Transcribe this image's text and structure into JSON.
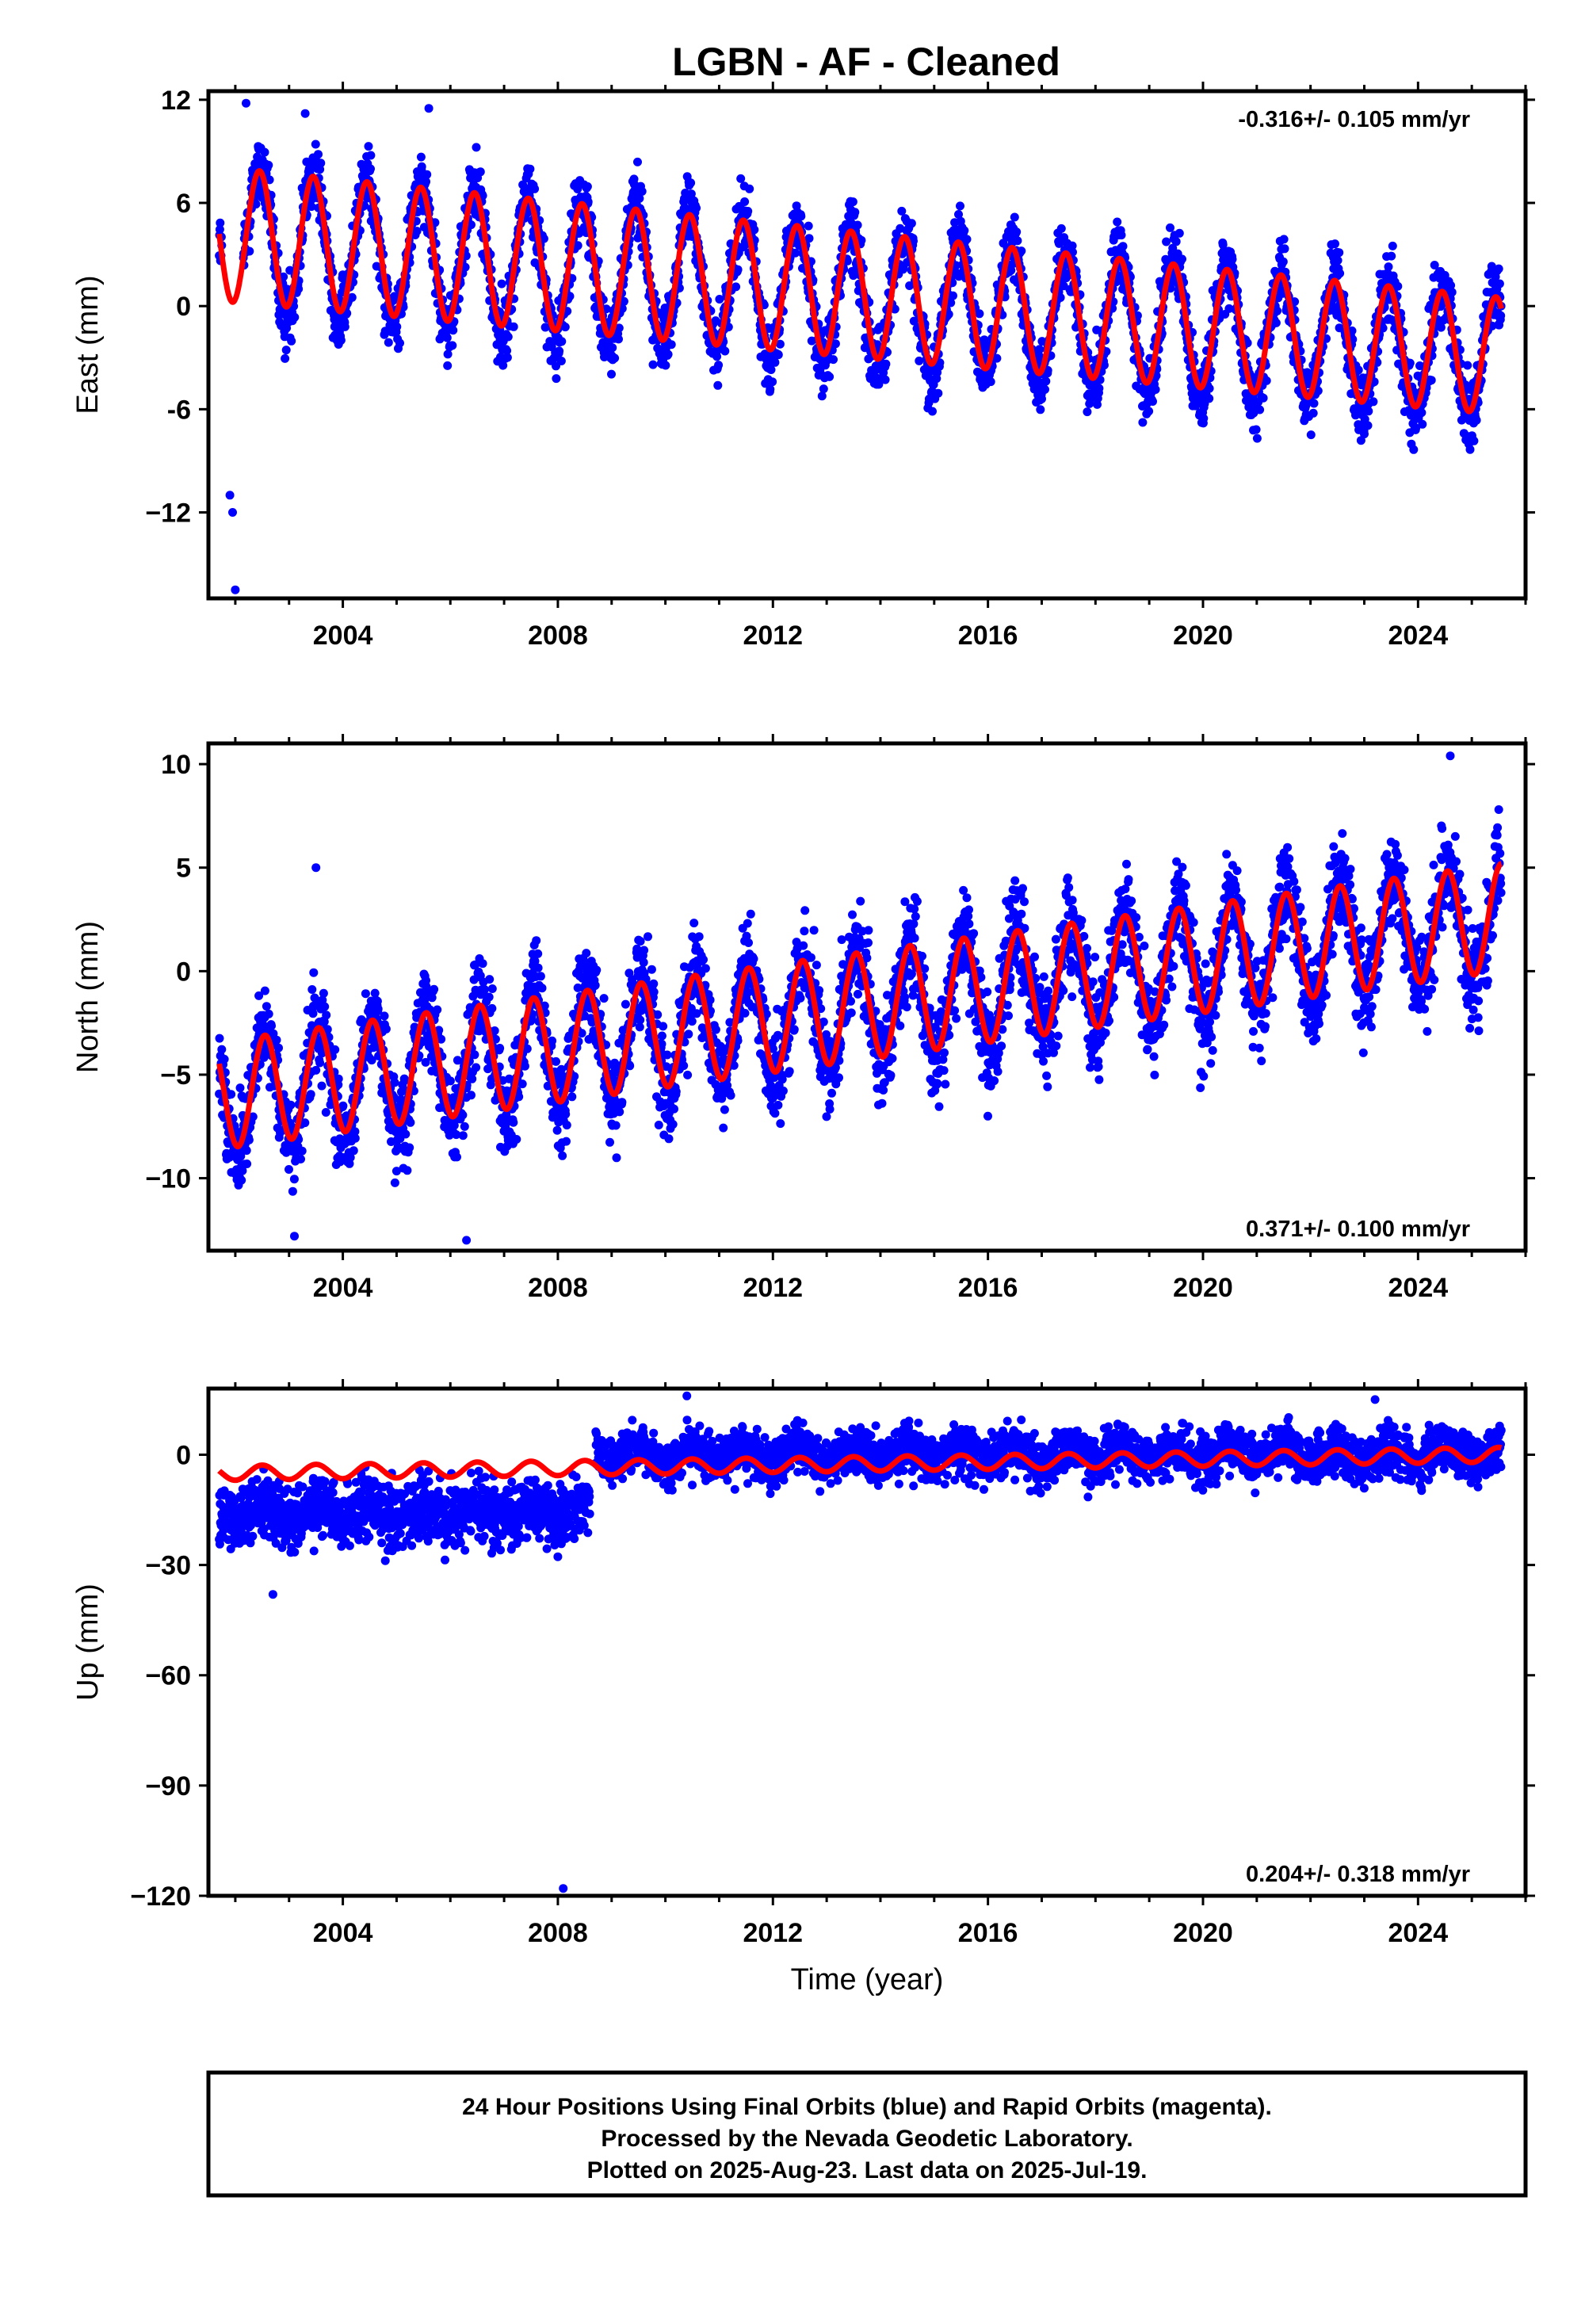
{
  "title": "LGBN  - AF - Cleaned",
  "colors": {
    "final_orbits": "#0000ff",
    "fit_line": "#ff0000",
    "frame": "#000000",
    "background": "#ffffff"
  },
  "chart_data": [
    {
      "type": "scatter",
      "component": "east",
      "ylabel": "East (mm)",
      "xlabel": "",
      "xlim": [
        2001.5,
        2026.0
      ],
      "ylim": [
        -17,
        12.5
      ],
      "yticks": [
        -12,
        -6,
        0,
        6,
        12
      ],
      "ytick_labels": [
        "−12",
        "-6",
        "0",
        "6",
        "12"
      ],
      "xticks": [
        2004,
        2008,
        2012,
        2016,
        2020,
        2024
      ],
      "xtick_labels": [
        "2004",
        "2008",
        "2012",
        "2016",
        "2020",
        "2024"
      ],
      "rate_text": "-0.316+/- 0.105 mm/yr",
      "rate_position": "top-right",
      "series": [
        {
          "name": "Final Orbits",
          "kind": "points",
          "data_start": 2001.7,
          "data_end": 2025.55,
          "gap_after": 2001.75,
          "gap_until": 2002.15,
          "annual_amplitude_start": 4.2,
          "annual_amplitude_end": 3.6,
          "peak_phase_year_fraction": 0.45,
          "offset_start": 4.0,
          "offset_end": -3.0,
          "scatter_mm": 1.4,
          "outliers": [
            [
              2001.9,
              -11
            ],
            [
              2001.95,
              -12
            ],
            [
              2002.0,
              -16.5
            ],
            [
              2005.6,
              11.5
            ],
            [
              2002.2,
              11.8
            ],
            [
              2003.3,
              11.2
            ]
          ]
        },
        {
          "name": "Model fit",
          "kind": "line",
          "x_start": 2001.7,
          "x_end": 2025.55,
          "annual_amplitude_start": 3.9,
          "annual_amplitude_end": 3.4,
          "peak_phase_year_fraction": 0.45,
          "offset_start": 4.2,
          "offset_end": -2.9
        }
      ]
    },
    {
      "type": "scatter",
      "component": "north",
      "ylabel": "North (mm)",
      "xlabel": "",
      "xlim": [
        2001.5,
        2026.0
      ],
      "ylim": [
        -13.5,
        11
      ],
      "yticks": [
        -10,
        -5,
        0,
        5,
        10
      ],
      "ytick_labels": [
        "−10",
        "−5",
        "0",
        "5",
        "10"
      ],
      "xticks": [
        2004,
        2008,
        2012,
        2016,
        2020,
        2024
      ],
      "xtick_labels": [
        "2004",
        "2008",
        "2012",
        "2016",
        "2020",
        "2024"
      ],
      "rate_text": "0.371+/- 0.100 mm/yr",
      "rate_position": "bottom-right",
      "series": [
        {
          "name": "Final Orbits",
          "kind": "points",
          "data_start": 2001.7,
          "data_end": 2025.55,
          "annual_amplitude_start": 2.8,
          "annual_amplitude_end": 2.8,
          "peak_phase_year_fraction": 0.55,
          "offset_start": -6.0,
          "offset_end": 2.5,
          "scatter_mm": 1.6,
          "outliers": [
            [
              2006.3,
              -13
            ],
            [
              2003.1,
              -12.8
            ],
            [
              2003.5,
              5.0
            ],
            [
              2024.6,
              10.4
            ]
          ]
        },
        {
          "name": "Model fit",
          "kind": "line",
          "x_start": 2001.7,
          "x_end": 2025.55,
          "annual_amplitude_start": 2.6,
          "annual_amplitude_end": 2.6,
          "peak_phase_year_fraction": 0.55,
          "offset_start": -6.0,
          "offset_end": 2.6
        }
      ]
    },
    {
      "type": "scatter",
      "component": "up",
      "ylabel": "Up (mm)",
      "xlabel": "Time (year)",
      "xlim": [
        2001.5,
        2026.0
      ],
      "ylim": [
        -120,
        18
      ],
      "yticks": [
        -120,
        -90,
        -60,
        -30,
        0
      ],
      "ytick_labels": [
        "−120",
        "−90",
        "−60",
        "−30",
        "0"
      ],
      "xticks": [
        2004,
        2008,
        2012,
        2016,
        2020,
        2024
      ],
      "xtick_labels": [
        "2004",
        "2008",
        "2012",
        "2016",
        "2020",
        "2024"
      ],
      "rate_text": "0.204+/- 0.318 mm/yr",
      "rate_position": "bottom-right",
      "series": [
        {
          "name": "Final Orbits",
          "kind": "points",
          "segments": [
            {
              "start": 2001.7,
              "end": 2008.6,
              "offset": -16,
              "scatter_mm": 6.0
            },
            {
              "start": 2008.7,
              "end": 2025.55,
              "offset": 0,
              "scatter_mm": 4.5
            }
          ],
          "outliers": [
            [
              2008.1,
              -118
            ],
            [
              2002.7,
              -38
            ],
            [
              2010.4,
              16
            ],
            [
              2023.2,
              15
            ]
          ]
        },
        {
          "name": "Model fit",
          "kind": "line",
          "x_start": 2001.7,
          "x_end": 2025.55,
          "annual_amplitude_start": 2.0,
          "annual_amplitude_end": 2.0,
          "peak_phase_year_fraction": 0.5,
          "offset_start": -5.0,
          "offset_end": 0.0
        }
      ]
    }
  ],
  "footer": {
    "line1": "24 Hour Positions Using Final Orbits (blue) and Rapid Orbits (magenta).",
    "line2": "Processed by the Nevada Geodetic Laboratory.",
    "line3": "Plotted on 2025-Aug-23. Last data on 2025-Jul-19."
  }
}
